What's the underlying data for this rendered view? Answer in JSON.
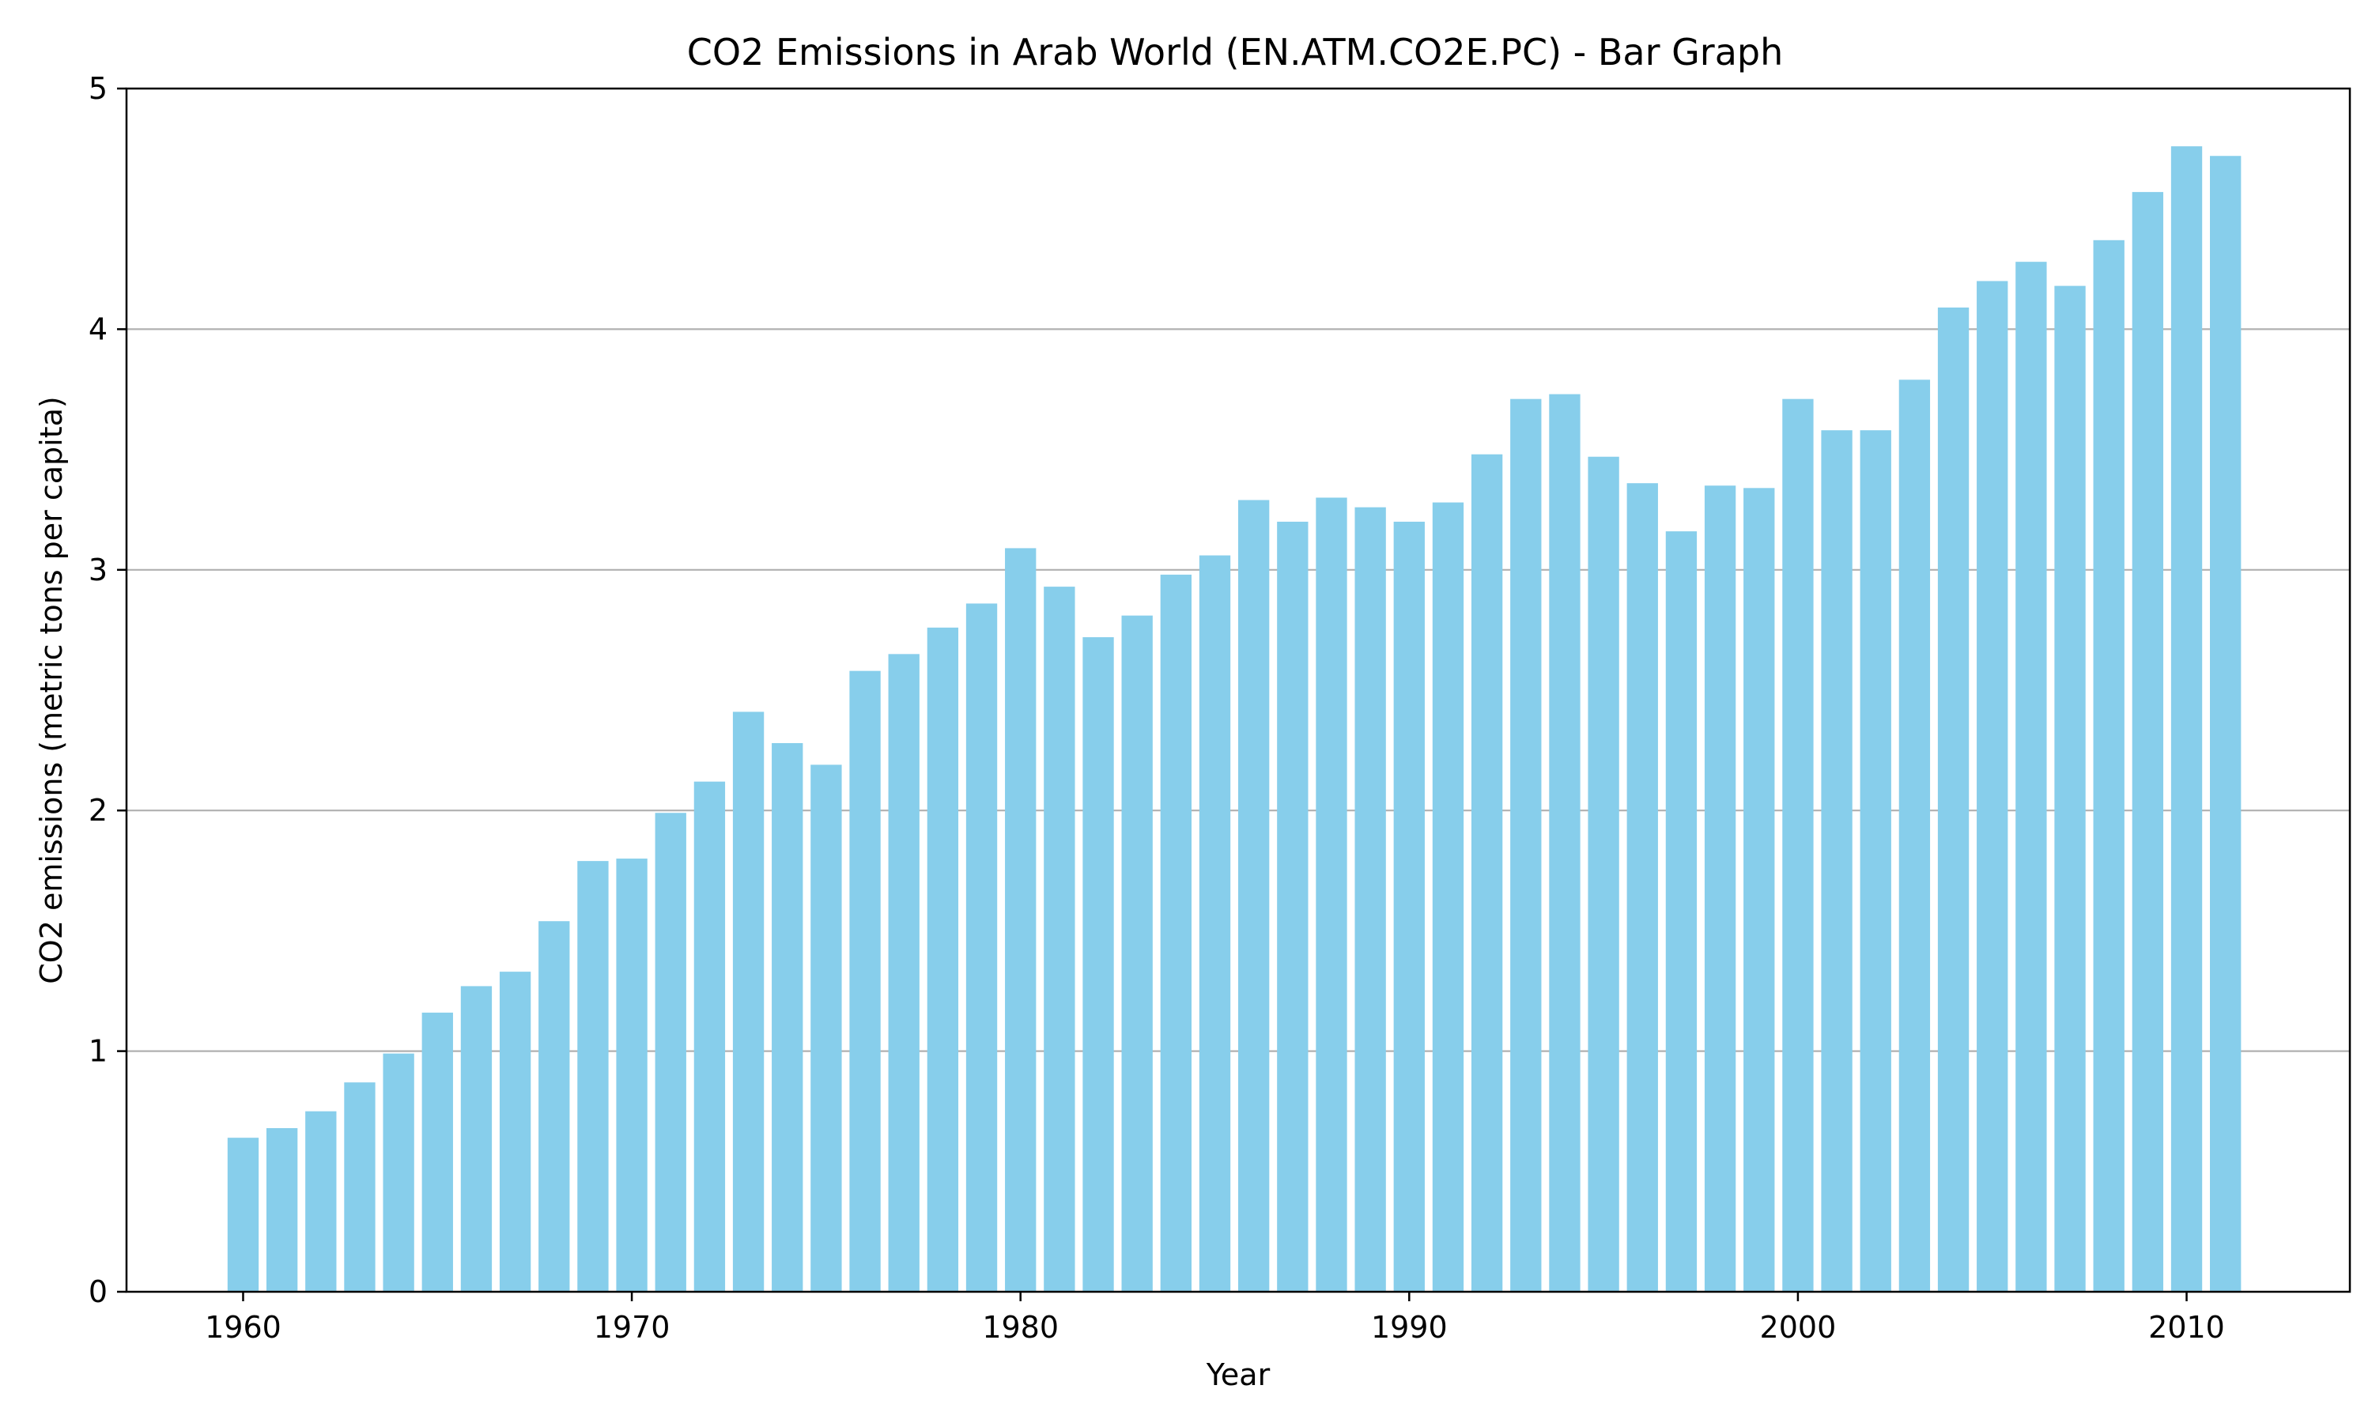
{
  "chart_data": {
    "type": "bar",
    "title": "CO2 Emissions in Arab World (EN.ATM.CO2E.PC) - Bar Graph",
    "xlabel": "Year",
    "ylabel": "CO2 emissions (metric tons per capita)",
    "x": [
      1960,
      1961,
      1962,
      1963,
      1964,
      1965,
      1966,
      1967,
      1968,
      1969,
      1970,
      1971,
      1972,
      1973,
      1974,
      1975,
      1976,
      1977,
      1978,
      1979,
      1980,
      1981,
      1982,
      1983,
      1984,
      1985,
      1986,
      1987,
      1988,
      1989,
      1990,
      1991,
      1992,
      1993,
      1994,
      1995,
      1996,
      1997,
      1998,
      1999,
      2000,
      2001,
      2002,
      2003,
      2004,
      2005,
      2006,
      2007,
      2008,
      2009,
      2010,
      2011
    ],
    "values": [
      0.64,
      0.68,
      0.75,
      0.87,
      0.99,
      1.16,
      1.27,
      1.33,
      1.54,
      1.79,
      1.8,
      1.99,
      2.12,
      2.41,
      2.28,
      2.19,
      2.58,
      2.65,
      2.76,
      2.86,
      3.09,
      2.93,
      2.72,
      2.81,
      2.98,
      3.06,
      3.29,
      3.2,
      3.3,
      3.26,
      3.2,
      3.28,
      3.48,
      3.71,
      3.73,
      3.47,
      3.36,
      3.16,
      3.35,
      3.34,
      3.71,
      3.58,
      3.58,
      3.79,
      4.09,
      4.2,
      4.28,
      4.18,
      4.37,
      4.57,
      4.76,
      4.72
    ],
    "xlim": [
      1957,
      2014.2
    ],
    "ylim": [
      0,
      5
    ],
    "xticks": [
      "1960",
      "1970",
      "1980",
      "1990",
      "2000",
      "2010"
    ],
    "yticks": [
      "0",
      "1",
      "2",
      "3",
      "4",
      "5"
    ],
    "grid": "y-axis only",
    "bar_color": "#87CEEB",
    "grid_color": "#b0b0b0"
  }
}
